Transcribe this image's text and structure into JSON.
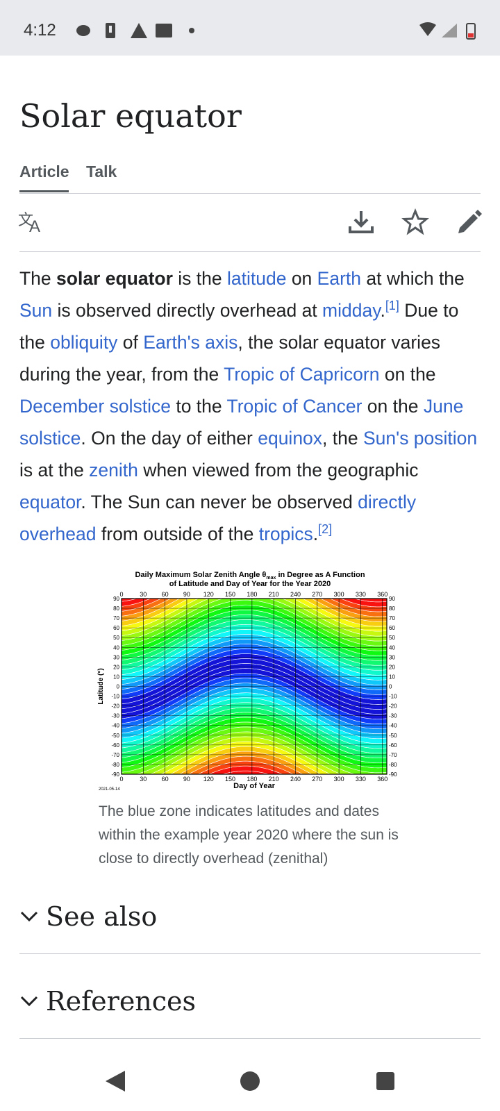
{
  "status": {
    "time": "4:12"
  },
  "title": "Solar equator",
  "tabs": [
    "Article",
    "Talk"
  ],
  "paragraph": [
    {
      "text": "The ",
      "kind": "plain"
    },
    {
      "text": "solar equator",
      "kind": "bold"
    },
    {
      "text": " is the ",
      "kind": "plain"
    },
    {
      "text": "latitude",
      "kind": "link"
    },
    {
      "text": " on ",
      "kind": "plain"
    },
    {
      "text": "Earth",
      "kind": "link"
    },
    {
      "text": " at which the ",
      "kind": "plain"
    },
    {
      "text": "Sun",
      "kind": "link"
    },
    {
      "text": " is observed directly overhead at ",
      "kind": "plain"
    },
    {
      "text": "midday",
      "kind": "link"
    },
    {
      "text": ".",
      "kind": "plain"
    },
    {
      "text": "[1]",
      "kind": "ref"
    },
    {
      "text": " Due to the ",
      "kind": "plain"
    },
    {
      "text": "obliquity",
      "kind": "link"
    },
    {
      "text": " of ",
      "kind": "plain"
    },
    {
      "text": "Earth's axis",
      "kind": "link"
    },
    {
      "text": ", the solar equator varies during the year, from the ",
      "kind": "plain"
    },
    {
      "text": "Tropic of Capricorn",
      "kind": "link"
    },
    {
      "text": " on the ",
      "kind": "plain"
    },
    {
      "text": "December solstice",
      "kind": "link"
    },
    {
      "text": " to the ",
      "kind": "plain"
    },
    {
      "text": "Tropic of Cancer",
      "kind": "link"
    },
    {
      "text": " on the ",
      "kind": "plain"
    },
    {
      "text": "June solstice",
      "kind": "link"
    },
    {
      "text": ". On the day of either ",
      "kind": "plain"
    },
    {
      "text": "equinox",
      "kind": "link"
    },
    {
      "text": ", the ",
      "kind": "plain"
    },
    {
      "text": "Sun's position",
      "kind": "link"
    },
    {
      "text": " is at the ",
      "kind": "plain"
    },
    {
      "text": "zenith",
      "kind": "link"
    },
    {
      "text": " when viewed from the geographic ",
      "kind": "plain"
    },
    {
      "text": "equator",
      "kind": "link"
    },
    {
      "text": ". The Sun can never be observed ",
      "kind": "plain"
    },
    {
      "text": "directly overhead",
      "kind": "link"
    },
    {
      "text": " from outside of the ",
      "kind": "plain"
    },
    {
      "text": "tropics",
      "kind": "link"
    },
    {
      "text": ".",
      "kind": "plain"
    },
    {
      "text": "[2]",
      "kind": "ref"
    }
  ],
  "figure": {
    "title_line1": [
      "Daily Maximum Solar Zenith Angle θ",
      "max",
      " in Degree as A Function"
    ],
    "title_line2": "of Latitude and Day of Year for the Year 2020",
    "xlabel": "Day of Year",
    "ylabel": "Latitude (°)",
    "date": "2021-05-14",
    "xlim": [
      0,
      366
    ],
    "ylim": [
      -90,
      90
    ],
    "xticks": [
      0,
      30,
      60,
      90,
      120,
      150,
      180,
      210,
      240,
      270,
      300,
      330,
      360
    ],
    "yticks": [
      90,
      80,
      70,
      60,
      50,
      40,
      30,
      20,
      10,
      0,
      -10,
      -20,
      -30,
      -40,
      -50,
      -60,
      -70,
      -80,
      -90
    ],
    "caption": "The blue zone indicates latitudes and dates within the example year 2020 where the sun is close to directly overhead (zenithal)"
  },
  "sections": [
    "See also",
    "References"
  ]
}
